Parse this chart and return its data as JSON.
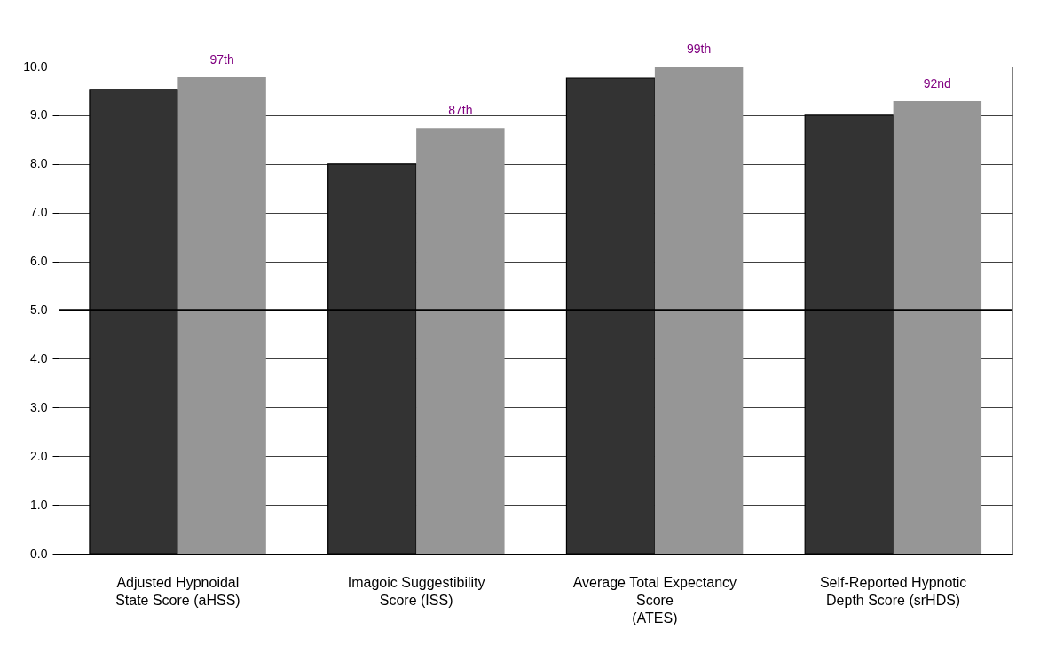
{
  "chart_data": {
    "type": "bar",
    "categories": [
      "Adjusted  Hypnoidal\nState Score  (aHSS)",
      "Imagoic Suggestibility\nScore (ISS)",
      "Average Total Expectancy\nScore\n(ATES)",
      "Self-Reported Hypnotic\nDepth Score (srHDS)"
    ],
    "series": [
      {
        "color": "#333333",
        "values": [
          9.53,
          8.0,
          9.76,
          9.0
        ]
      },
      {
        "color": "#969696",
        "values": [
          9.78,
          8.74,
          10.0,
          9.29
        ]
      }
    ],
    "annotations": [
      {
        "text": "97th",
        "x": "Adjusted  Hypnoidal\nState Score  (aHSS)",
        "y": 9.78
      },
      {
        "text": "87th",
        "x": "Imagoic Suggestibility\nScore (ISS)",
        "y": 8.74
      },
      {
        "text": "99th",
        "x": "Average Total Expectancy\nScore\n(ATES)",
        "y": 10.0
      },
      {
        "text": "92nd",
        "x": "Self-Reported Hypnotic\nDepth Score (srHDS)",
        "y": 9.29
      }
    ],
    "ylim": [
      0,
      10
    ],
    "yticks": [
      {
        "value": 0,
        "label": "0.0"
      },
      {
        "value": 1,
        "label": "1.0"
      },
      {
        "value": 2,
        "label": "2.0"
      },
      {
        "value": 3,
        "label": "3.0"
      },
      {
        "value": 4,
        "label": "4.0"
      },
      {
        "value": 5,
        "label": "5.0"
      },
      {
        "value": 6,
        "label": "6.0"
      },
      {
        "value": 7,
        "label": "7.0"
      },
      {
        "value": 8,
        "label": "8.0"
      },
      {
        "value": 9,
        "label": "9.0"
      },
      {
        "value": 10,
        "label": "10.0"
      }
    ],
    "grid": "y",
    "legend": false,
    "ref_lines": [
      {
        "axis": "y",
        "value": 5,
        "color": "#000000"
      }
    ]
  }
}
